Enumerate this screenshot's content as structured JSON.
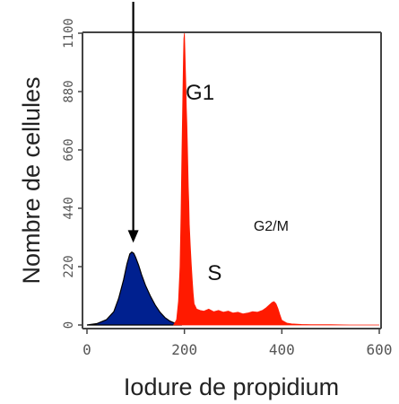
{
  "chart_data": {
    "type": "area",
    "xlabel": "Iodure de propidium",
    "ylabel": "Nombre de cellules",
    "xlim": [
      0,
      600
    ],
    "ylim": [
      0,
      1100
    ],
    "x_ticks": [
      0,
      200,
      400,
      600
    ],
    "y_ticks": [
      0,
      220,
      440,
      660,
      880,
      1100
    ],
    "x_tick_labels": [
      "0",
      "200",
      "400",
      "600"
    ],
    "y_tick_labels": [
      "0",
      "220",
      "440",
      "660",
      "880",
      "1100"
    ],
    "grid": false,
    "series": [
      {
        "color": "#00208f",
        "x": [
          0,
          20,
          40,
          55,
          65,
          75,
          82,
          88,
          92,
          96,
          100,
          106,
          112,
          120,
          130,
          140,
          150,
          160,
          170,
          180,
          190,
          195
        ],
        "values": [
          0,
          5,
          20,
          50,
          100,
          170,
          230,
          268,
          275,
          270,
          255,
          225,
          190,
          150,
          110,
          75,
          48,
          28,
          15,
          7,
          3,
          0
        ]
      },
      {
        "color": "#ff1a00",
        "x": [
          178,
          184,
          188,
          191,
          193,
          195,
          197,
          198,
          199,
          200,
          201,
          202,
          203,
          204,
          205,
          206,
          207,
          208,
          209,
          210,
          212,
          214,
          216,
          218,
          220,
          225,
          232,
          240,
          250,
          260,
          270,
          280,
          290,
          300,
          310,
          320,
          330,
          340,
          350,
          360,
          368,
          374,
          380,
          384,
          388,
          392,
          396,
          400,
          410,
          420,
          440,
          460,
          480,
          500,
          540,
          580,
          600
        ],
        "values": [
          0,
          20,
          90,
          220,
          420,
          650,
          880,
          1000,
          1080,
          1100,
          1040,
          960,
          900,
          820,
          760,
          690,
          600,
          520,
          460,
          380,
          300,
          230,
          170,
          120,
          80,
          60,
          55,
          52,
          60,
          50,
          55,
          48,
          52,
          45,
          48,
          42,
          45,
          50,
          48,
          55,
          65,
          75,
          85,
          88,
          80,
          62,
          38,
          18,
          7,
          4,
          2,
          1,
          1,
          1,
          0,
          0,
          0
        ]
      }
    ],
    "annotations": [
      {
        "text": "G1",
        "x": 232,
        "y": 850
      },
      {
        "text": "S",
        "x": 262,
        "y": 170
      },
      {
        "text": "G2/M",
        "x": 378,
        "y": 355
      }
    ],
    "arrow": {
      "x": 95,
      "y_start": 1260,
      "y_end": 310
    }
  }
}
